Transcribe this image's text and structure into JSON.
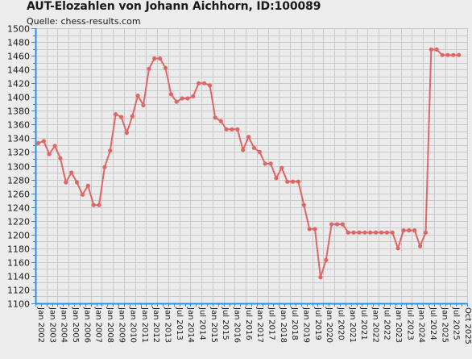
{
  "chart_data": {
    "type": "line",
    "title": "AUT-Elozahlen von Johann Aichhorn, ID:100089",
    "subtitle": "Quelle: chess-results.com",
    "xlabel": "",
    "ylabel": "",
    "ylim": [
      1100,
      1500
    ],
    "ystep": 20,
    "grid": true,
    "legend": "none",
    "line_color": "#e06666",
    "axis_color": "#2f8fe6",
    "x_tick_labels": [
      "Jan 2002",
      "Jan 2003",
      "Jan 2004",
      "Jan 2005",
      "Jan 2006",
      "Jan 2007",
      "Jan 2008",
      "Jan 2009",
      "Jan 2010",
      "Jan 2011",
      "Jan 2012",
      "Jan 2013",
      "Jul 2013",
      "Jan 2014",
      "Jul 2014",
      "Jan 2015",
      "Jul 2015",
      "Jan 2016",
      "Jul 2016",
      "Jan 2017",
      "Jul 2017",
      "Jan 2018",
      "Jul 2018",
      "Jan 2019",
      "Jul 2019",
      "Jan 2020",
      "Jul 2020",
      "Jan 2021",
      "Jul 2021",
      "Jan 2022",
      "Jul 2022",
      "Jan 2023",
      "Jul 2023",
      "Jan 2024",
      "Jul 2024",
      "Jan 2025",
      "Jul 2025",
      "Oct 2025"
    ],
    "series": [
      {
        "values": [
          1333,
          1336,
          1317,
          1329,
          1311,
          1276,
          1290,
          1276,
          1258,
          1271,
          1243,
          1243,
          1298,
          1322,
          1375,
          1371,
          1348,
          1372,
          1402,
          1388,
          1441,
          1456,
          1456,
          1442,
          1404,
          1393,
          1398,
          1398,
          1401,
          1420,
          1420,
          1417,
          1370,
          1365,
          1353,
          1353,
          1353,
          1323,
          1342,
          1326,
          1320,
          1303,
          1303,
          1282,
          1297,
          1277,
          1277,
          1277,
          1243,
          1208,
          1208,
          1138,
          1163,
          1215,
          1215,
          1215,
          1203,
          1203,
          1203,
          1203,
          1203,
          1203,
          1203,
          1203,
          1203,
          1180,
          1206,
          1206,
          1206,
          1183,
          1203,
          1469,
          1469,
          1461,
          1461,
          1461,
          1461
        ]
      }
    ]
  }
}
